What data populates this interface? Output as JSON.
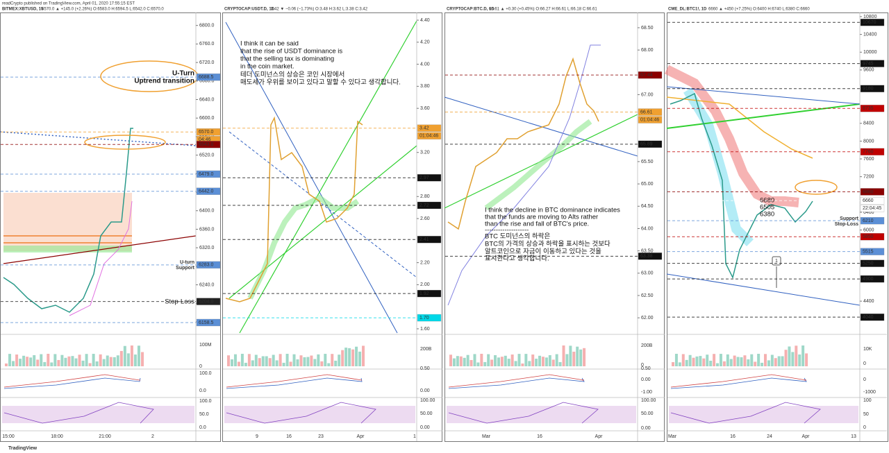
{
  "header": {
    "byline": "readCrypto published on TradingView.com, April 01, 2020 17:55:15 EST",
    "footer": "TradingView"
  },
  "panels": [
    {
      "symbol": "BITMEX:XBTUSD, 15",
      "quote": "6570.0 ▲ +145.0 (+2.26%) O:6583.0 H:6594.5 L:6542.0 C:6570.0",
      "ylim": [
        6136,
        6825
      ],
      "yticks": [
        {
          "value": 6800,
          "label": "6800.0"
        },
        {
          "value": 6760,
          "label": "6760.0"
        },
        {
          "value": 6720,
          "label": "6720.0"
        },
        {
          "value": 6680,
          "label": "6680.0"
        },
        {
          "value": 6640,
          "label": "6640.0"
        },
        {
          "value": 6600,
          "label": "6600.0"
        },
        {
          "value": 6560,
          "label": "6560.0"
        },
        {
          "value": 6520,
          "label": "6520.0"
        },
        {
          "value": 6480,
          "label": "6480.0"
        },
        {
          "value": 6440,
          "label": "6440.0"
        },
        {
          "value": 6400,
          "label": "6400.0"
        },
        {
          "value": 6360,
          "label": "6360.0"
        },
        {
          "value": 6320,
          "label": "6320.0"
        },
        {
          "value": 6280,
          "label": "6280.0"
        },
        {
          "value": 6240,
          "label": "6240.0"
        },
        {
          "value": 6200,
          "label": "6200.0"
        },
        {
          "value": 6160,
          "label": "6160.0"
        }
      ],
      "price_labels": [
        {
          "value": 6688.5,
          "label": "6688.5",
          "color": "#5b8fd6"
        },
        {
          "value": 6570,
          "label": "6570.0",
          "color": "#f0a030"
        },
        {
          "label": "04:46",
          "color": "#f0a030"
        },
        {
          "value": 6543,
          "label": "6543.0",
          "color": "#8b0000"
        },
        {
          "value": 6479,
          "label": "6479.0",
          "color": "#5b8fd6"
        },
        {
          "value": 6442,
          "label": "6442.0",
          "color": "#5b8fd6"
        },
        {
          "value": 6283,
          "label": "6283.0",
          "color": "#5b8fd6"
        },
        {
          "value": 6204,
          "label": "6204.0",
          "color": "#222222"
        },
        {
          "value": 6158.5,
          "label": "6158.5",
          "color": "#5b8fd6"
        }
      ],
      "annotations": [
        "U-Turn",
        "Uptrend transition",
        "U-turn",
        "Support",
        "Stop-Loss"
      ],
      "sub_axis": [
        "100M",
        "0",
        "100.0",
        "0.0",
        "100.0",
        "50.0",
        "0.0"
      ],
      "time_axis": [
        "15:00",
        "18:00",
        "21:00",
        "2"
      ]
    },
    {
      "symbol": "CRYPTOCAP:USDT.D, 1D",
      "quote": "3.42 ▼ −0.06 (−1.73%) O:3.48 H:3.62 L:3.38 C:3.42",
      "ylim": [
        1.562,
        4.457
      ],
      "yticks": [
        {
          "value": 4.4,
          "label": "4.40"
        },
        {
          "value": 4.2,
          "label": "4.20"
        },
        {
          "value": 4.0,
          "label": "4.00"
        },
        {
          "value": 3.8,
          "label": "3.80"
        },
        {
          "value": 3.6,
          "label": "3.60"
        },
        {
          "value": 3.2,
          "label": "3.20"
        },
        {
          "value": 2.8,
          "label": "2.80"
        },
        {
          "value": 2.6,
          "label": "2.60"
        },
        {
          "value": 2.2,
          "label": "2.20"
        },
        {
          "value": 2.0,
          "label": "2.00"
        },
        {
          "value": 1.6,
          "label": "1.60"
        }
      ],
      "price_labels": [
        {
          "value": 3.42,
          "label": "3.42",
          "color": "#f0a030"
        },
        {
          "label": "01:04:46",
          "color": "#f0a030"
        },
        {
          "value": 2.97,
          "label": "2.97",
          "color": "#111111"
        },
        {
          "value": 2.72,
          "label": "2.72",
          "color": "#111111"
        },
        {
          "value": 2.41,
          "label": "2.41",
          "color": "#111111"
        },
        {
          "value": 1.92,
          "label": "1.92",
          "color": "#111111"
        },
        {
          "value": 1.7,
          "label": "1.70",
          "color": "#00d8e8"
        }
      ],
      "annotations": [
        "I think it can be said",
        "that the rise of USDT dominance is",
        "that the selling tax is dominating",
        "in the coin market.",
        "테더 도미넌스의 상승은 코인 시장에서",
        "매도세가 우위를 보이고 있다고 말할 수 있다고 생각합니다."
      ],
      "sub_axis": [
        "200B",
        "0.50",
        "0.00",
        "100.00",
        "50.00",
        "0.00"
      ],
      "time_axis": [
        "9",
        "16",
        "23",
        "Apr",
        "1"
      ]
    },
    {
      "symbol": "CRYPTOCAP:BTC.D, 1D",
      "quote": "66.61 ▲ +0.30 (+0.45%) O:66.27 H:66.61 L:66.18 C:66.61",
      "ylim": [
        61.66,
        68.81
      ],
      "yticks": [
        {
          "value": 68.5,
          "label": "68.50"
        },
        {
          "value": 68.0,
          "label": "68.00"
        },
        {
          "value": 67.0,
          "label": "67.00"
        },
        {
          "value": 65.5,
          "label": "65.50"
        },
        {
          "value": 65.0,
          "label": "65.00"
        },
        {
          "value": 64.5,
          "label": "64.50"
        },
        {
          "value": 64.0,
          "label": "64.00"
        },
        {
          "value": 63.5,
          "label": "63.50"
        },
        {
          "value": 63.0,
          "label": "63.00"
        },
        {
          "value": 62.5,
          "label": "62.50"
        },
        {
          "value": 62.0,
          "label": "62.00"
        }
      ],
      "price_labels": [
        {
          "value": 67.44,
          "label": "67.44",
          "color": "#8b0000"
        },
        {
          "value": 66.61,
          "label": "66.61",
          "color": "#f0a030"
        },
        {
          "label": "01:04:46",
          "color": "#f0a030"
        },
        {
          "value": 65.89,
          "label": "65.89",
          "color": "#111111"
        },
        {
          "value": 63.38,
          "label": "63.38",
          "color": "#111111"
        }
      ],
      "annotations": [
        "I think the decline in BTC dominance indicates",
        "that the funds are moving to Alts rather",
        "than the rise and fall of BTC's price.",
        "--------------------",
        "BTC 도미넌스의 하락은",
        "BTC의 가격의 상승과 하락을 표시하는 것보다",
        "알트코인으로 자금이 이동하고 있다는 것을",
        "표시한다고 생각합니다."
      ],
      "sub_axis": [
        "200B",
        "0",
        "0.50",
        "0.00",
        "-1.00",
        "100.00",
        "50.00",
        "0.00"
      ],
      "time_axis": [
        "Mar",
        "16",
        "Apr"
      ]
    },
    {
      "symbol": "CME_DL:BTC1!, 1D",
      "quote": "6660 ▲ +450 (+7.25%) O:6400 H:6740 L:6380 C:6660",
      "ylim": [
        3684,
        10862
      ],
      "yticks": [
        10800,
        10400,
        10000,
        9600,
        8400,
        8000,
        7600,
        7200,
        6400,
        6000,
        4400
      ],
      "price_labels": [
        {
          "value": 10670,
          "label": "10670",
          "color": "#111111"
        },
        {
          "value": 9745,
          "label": "9745",
          "color": "#111111"
        },
        {
          "value": 9180,
          "label": "9180",
          "color": "#111111"
        },
        {
          "value": 8735,
          "label": "8735",
          "color": "#c00000"
        },
        {
          "value": 7760,
          "label": "7760",
          "color": "#c00000"
        },
        {
          "value": 6860,
          "label": "6860",
          "color": "#8b0000"
        },
        {
          "value": 6660,
          "label": "6660",
          "color": "#ffffff"
        },
        {
          "label": "22:04:45",
          "color": "#ffffff"
        },
        {
          "value": 6210,
          "label": "6210",
          "color": "#5b8fd6"
        },
        {
          "value": 5850,
          "label": "5850",
          "color": "#c00000"
        },
        {
          "value": 5515,
          "label": "5515",
          "color": "#5b8fd6"
        },
        {
          "value": 5250,
          "label": "5250",
          "color": "#111111"
        },
        {
          "value": 4900,
          "label": "4900",
          "color": "#111111"
        },
        {
          "value": 4040,
          "label": "4040",
          "color": "#111111"
        }
      ],
      "annotations": [
        "6680",
        "6505",
        "6380",
        "Support",
        "Stop-Loss",
        "1"
      ],
      "sub_axis": [
        "10K",
        "0",
        "0",
        "-1000",
        "100",
        "50",
        "0"
      ],
      "time_axis": [
        "Mar",
        "16",
        "24",
        "Apr",
        "13"
      ]
    }
  ]
}
